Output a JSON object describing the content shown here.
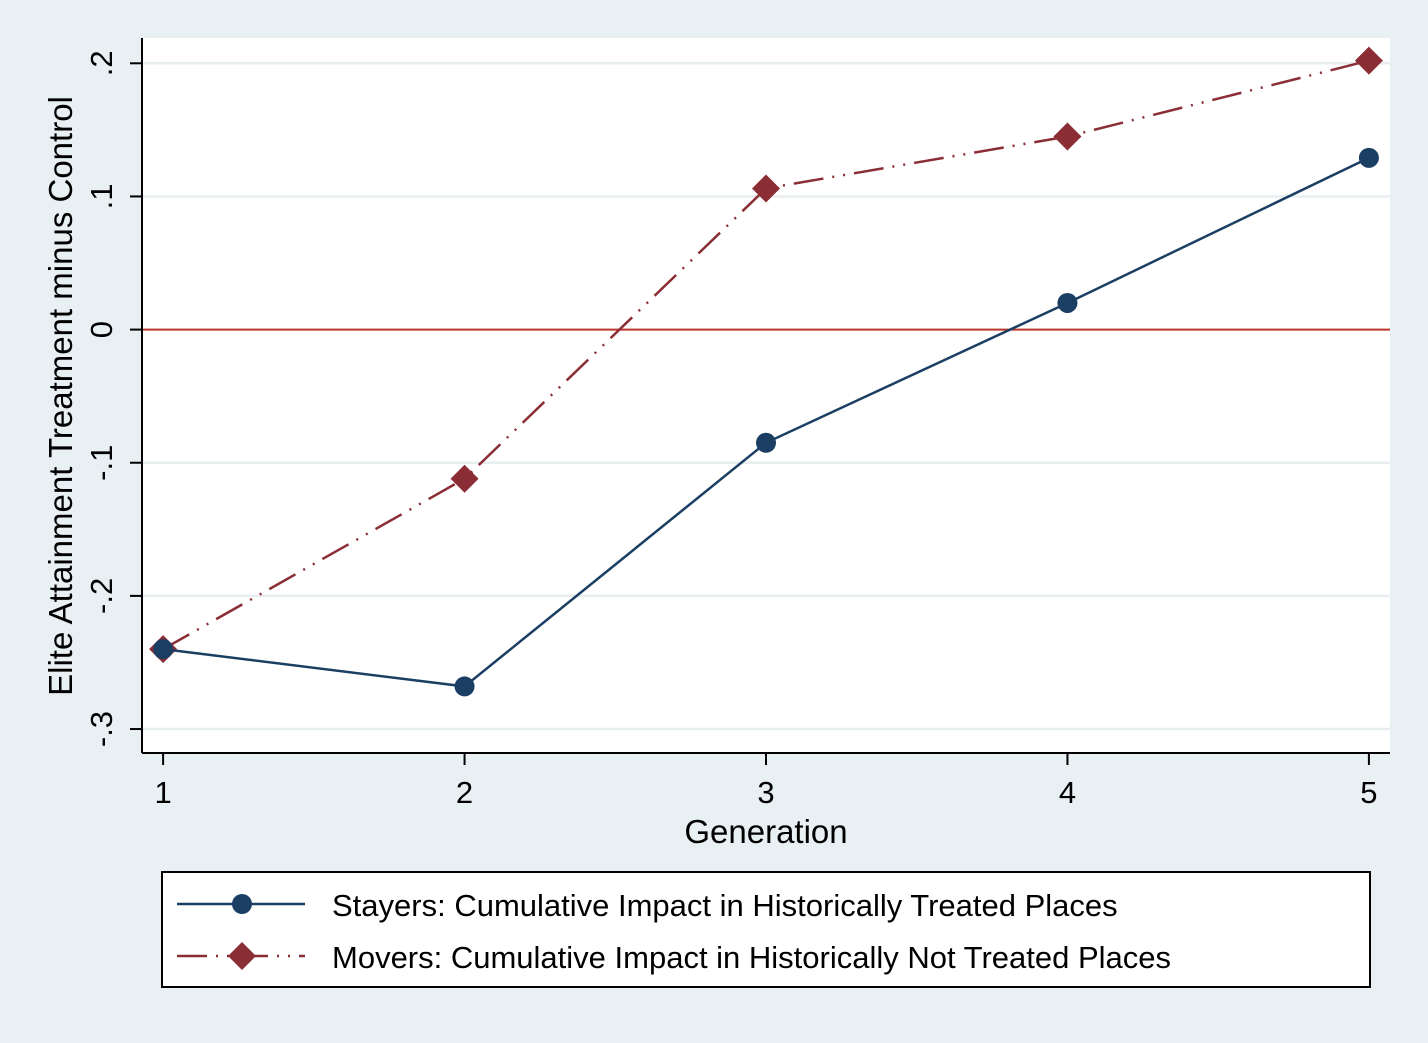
{
  "chart_data": {
    "type": "line",
    "xlabel": "Generation",
    "ylabel": "Elite Attainment Treatment minus Control",
    "x": [
      1,
      2,
      3,
      4,
      5
    ],
    "xticks": [
      "1",
      "2",
      "3",
      "4",
      "5"
    ],
    "xlim": [
      0.93,
      5.07
    ],
    "yticks": [
      {
        "value": -0.3,
        "label": "-.3"
      },
      {
        "value": -0.2,
        "label": "-.2"
      },
      {
        "value": -0.1,
        "label": "-.1"
      },
      {
        "value": 0,
        "label": "0"
      },
      {
        "value": 0.1,
        "label": ".1"
      },
      {
        "value": 0.2,
        "label": ".2"
      }
    ],
    "ylim": [
      -0.318,
      0.219
    ],
    "grid": true,
    "reference_line": {
      "y": 0,
      "color": "#c0392b"
    },
    "legend_position": "bottom",
    "series": [
      {
        "name": "Stayers: Cumulative Impact in Historically Treated Places",
        "values": [
          -0.24,
          -0.268,
          -0.085,
          0.02,
          0.129
        ],
        "color": "#1a3f63",
        "marker": "circle",
        "line_style": "solid"
      },
      {
        "name": "Movers: Cumulative Impact in Historically Not Treated Places",
        "values": [
          -0.24,
          -0.112,
          0.106,
          0.145,
          0.202
        ],
        "color": "#8b2d35",
        "marker": "diamond",
        "line_style": "dash-dot-dot"
      }
    ]
  }
}
